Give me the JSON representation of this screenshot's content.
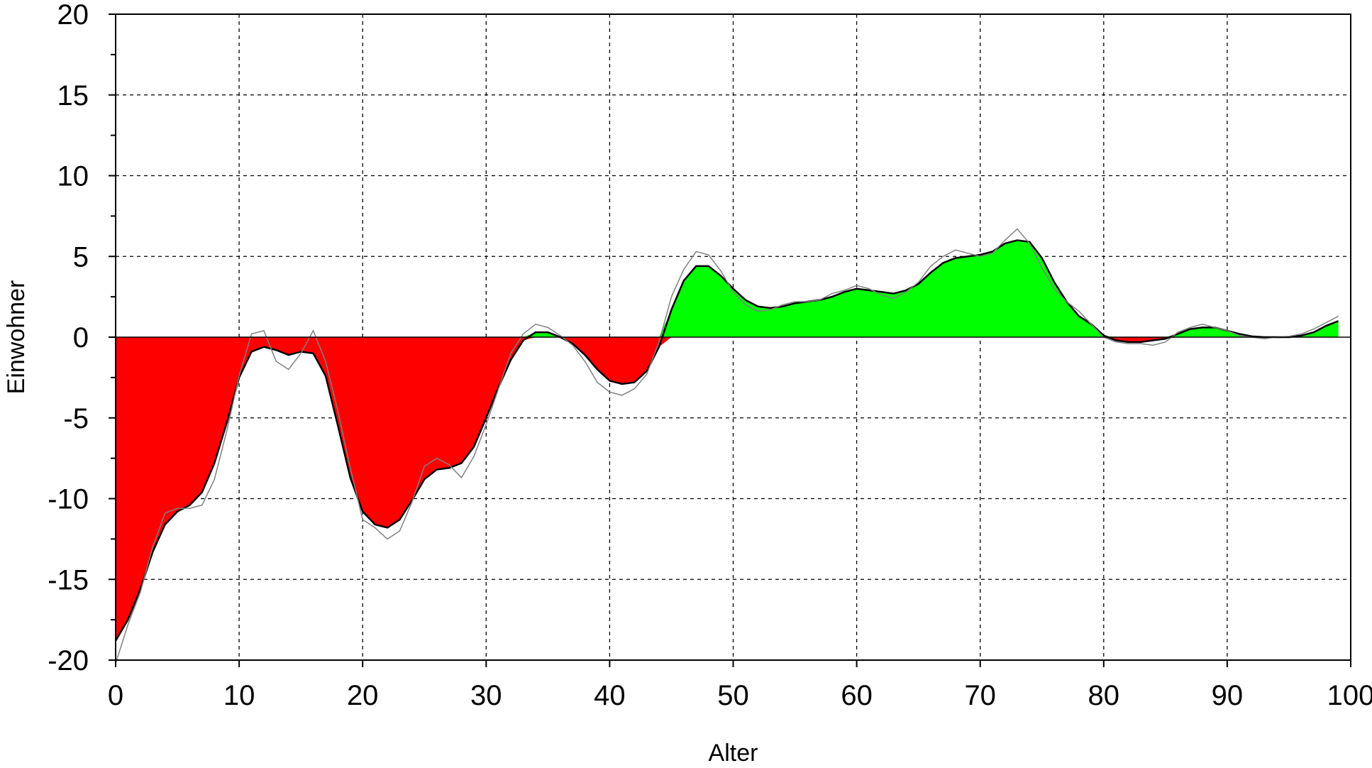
{
  "chart_data": {
    "type": "area",
    "xlabel": "Alter",
    "ylabel": "Einwohner",
    "xlim": [
      0,
      100
    ],
    "ylim": [
      -20,
      20
    ],
    "x_ticks": [
      0,
      10,
      20,
      30,
      40,
      50,
      60,
      70,
      80,
      90,
      100
    ],
    "y_ticks": [
      20,
      15,
      10,
      5,
      0,
      -5,
      -10,
      -15,
      -20
    ],
    "grid": true,
    "colors": {
      "positive": "#00ff00",
      "negative": "#ff0000",
      "smooth_line": "#000000",
      "raw_line": "#808080"
    },
    "series": [
      {
        "kind": "smoothed",
        "x": [
          0,
          1,
          2,
          3,
          4,
          5,
          6,
          7,
          8,
          9,
          10,
          11,
          12,
          13,
          14,
          15,
          16,
          17,
          18,
          19,
          20,
          21,
          22,
          23,
          24,
          25,
          26,
          27,
          28,
          29,
          30,
          31,
          32,
          33,
          34,
          35,
          36,
          37,
          38,
          39,
          40,
          41,
          42,
          43,
          44,
          45,
          46,
          47,
          48,
          49,
          50,
          51,
          52,
          53,
          54,
          55,
          56,
          57,
          58,
          59,
          60,
          61,
          62,
          63,
          64,
          65,
          66,
          67,
          68,
          69,
          70,
          71,
          72,
          73,
          74,
          75,
          76,
          77,
          78,
          79,
          80,
          81,
          82,
          83,
          84,
          85,
          86,
          87,
          88,
          89,
          90,
          91,
          92,
          93,
          94,
          95,
          96,
          97,
          98,
          99
        ],
        "values": [
          -18.8,
          -17.5,
          -15.6,
          -13.3,
          -11.6,
          -10.8,
          -10.4,
          -9.6,
          -7.8,
          -5.3,
          -2.5,
          -0.9,
          -0.6,
          -0.8,
          -1.1,
          -0.9,
          -1.0,
          -2.4,
          -5.5,
          -8.7,
          -10.8,
          -11.6,
          -11.8,
          -11.3,
          -10.1,
          -8.8,
          -8.2,
          -8.1,
          -7.8,
          -6.8,
          -5.0,
          -3.1,
          -1.4,
          -0.2,
          0.3,
          0.3,
          0.0,
          -0.4,
          -1.1,
          -2.0,
          -2.7,
          -2.9,
          -2.8,
          -2.1,
          -0.6,
          1.7,
          3.5,
          4.4,
          4.4,
          3.8,
          3.0,
          2.3,
          1.9,
          1.8,
          1.9,
          2.1,
          2.2,
          2.3,
          2.5,
          2.8,
          3.0,
          2.9,
          2.8,
          2.7,
          2.9,
          3.3,
          4.0,
          4.6,
          4.9,
          5.0,
          5.1,
          5.3,
          5.8,
          6.0,
          5.9,
          4.9,
          3.4,
          2.2,
          1.3,
          0.8,
          0.1,
          -0.2,
          -0.3,
          -0.3,
          -0.2,
          -0.1,
          0.2,
          0.5,
          0.6,
          0.6,
          0.4,
          0.2,
          0.05,
          0.0,
          0.0,
          0.0,
          0.1,
          0.3,
          0.7,
          1.0
        ]
      },
      {
        "kind": "raw",
        "x": [
          0,
          1,
          2,
          3,
          4,
          5,
          6,
          7,
          8,
          9,
          10,
          11,
          12,
          13,
          14,
          15,
          16,
          17,
          18,
          19,
          20,
          21,
          22,
          23,
          24,
          25,
          26,
          27,
          28,
          29,
          30,
          31,
          32,
          33,
          34,
          35,
          36,
          37,
          38,
          39,
          40,
          41,
          42,
          43,
          44,
          45,
          46,
          47,
          48,
          49,
          50,
          51,
          52,
          53,
          54,
          55,
          56,
          57,
          58,
          59,
          60,
          61,
          62,
          63,
          64,
          65,
          66,
          67,
          68,
          69,
          70,
          71,
          72,
          73,
          74,
          75,
          76,
          77,
          78,
          79,
          80,
          81,
          82,
          83,
          84,
          85,
          86,
          87,
          88,
          89,
          90,
          91,
          92,
          93,
          94,
          95,
          96,
          97,
          98,
          99
        ],
        "values": [
          -20.2,
          -17.8,
          -15.8,
          -13.0,
          -10.9,
          -10.6,
          -10.6,
          -10.4,
          -8.8,
          -5.8,
          -2.4,
          0.2,
          0.4,
          -1.5,
          -2.0,
          -1.0,
          0.4,
          -1.5,
          -4.6,
          -8.1,
          -11.3,
          -11.8,
          -12.5,
          -12.0,
          -10.2,
          -8.0,
          -7.5,
          -7.9,
          -8.7,
          -7.4,
          -5.4,
          -3.2,
          -1.0,
          0.2,
          0.8,
          0.6,
          0.1,
          -0.5,
          -1.5,
          -2.8,
          -3.4,
          -3.6,
          -3.2,
          -2.3,
          -0.3,
          2.5,
          4.2,
          5.3,
          5.1,
          4.1,
          2.8,
          2.0,
          1.6,
          1.7,
          2.0,
          2.2,
          2.2,
          2.3,
          2.7,
          2.9,
          3.2,
          3.0,
          2.6,
          2.4,
          2.8,
          3.4,
          4.4,
          5.0,
          5.4,
          5.2,
          5.0,
          5.2,
          6.0,
          6.7,
          5.8,
          4.3,
          3.0,
          2.2,
          1.6,
          0.8,
          0.0,
          -0.3,
          -0.4,
          -0.4,
          -0.5,
          -0.3,
          0.3,
          0.6,
          0.8,
          0.6,
          0.4,
          0.1,
          0.0,
          -0.1,
          0.0,
          0.05,
          0.2,
          0.5,
          0.9,
          1.3
        ]
      }
    ]
  }
}
